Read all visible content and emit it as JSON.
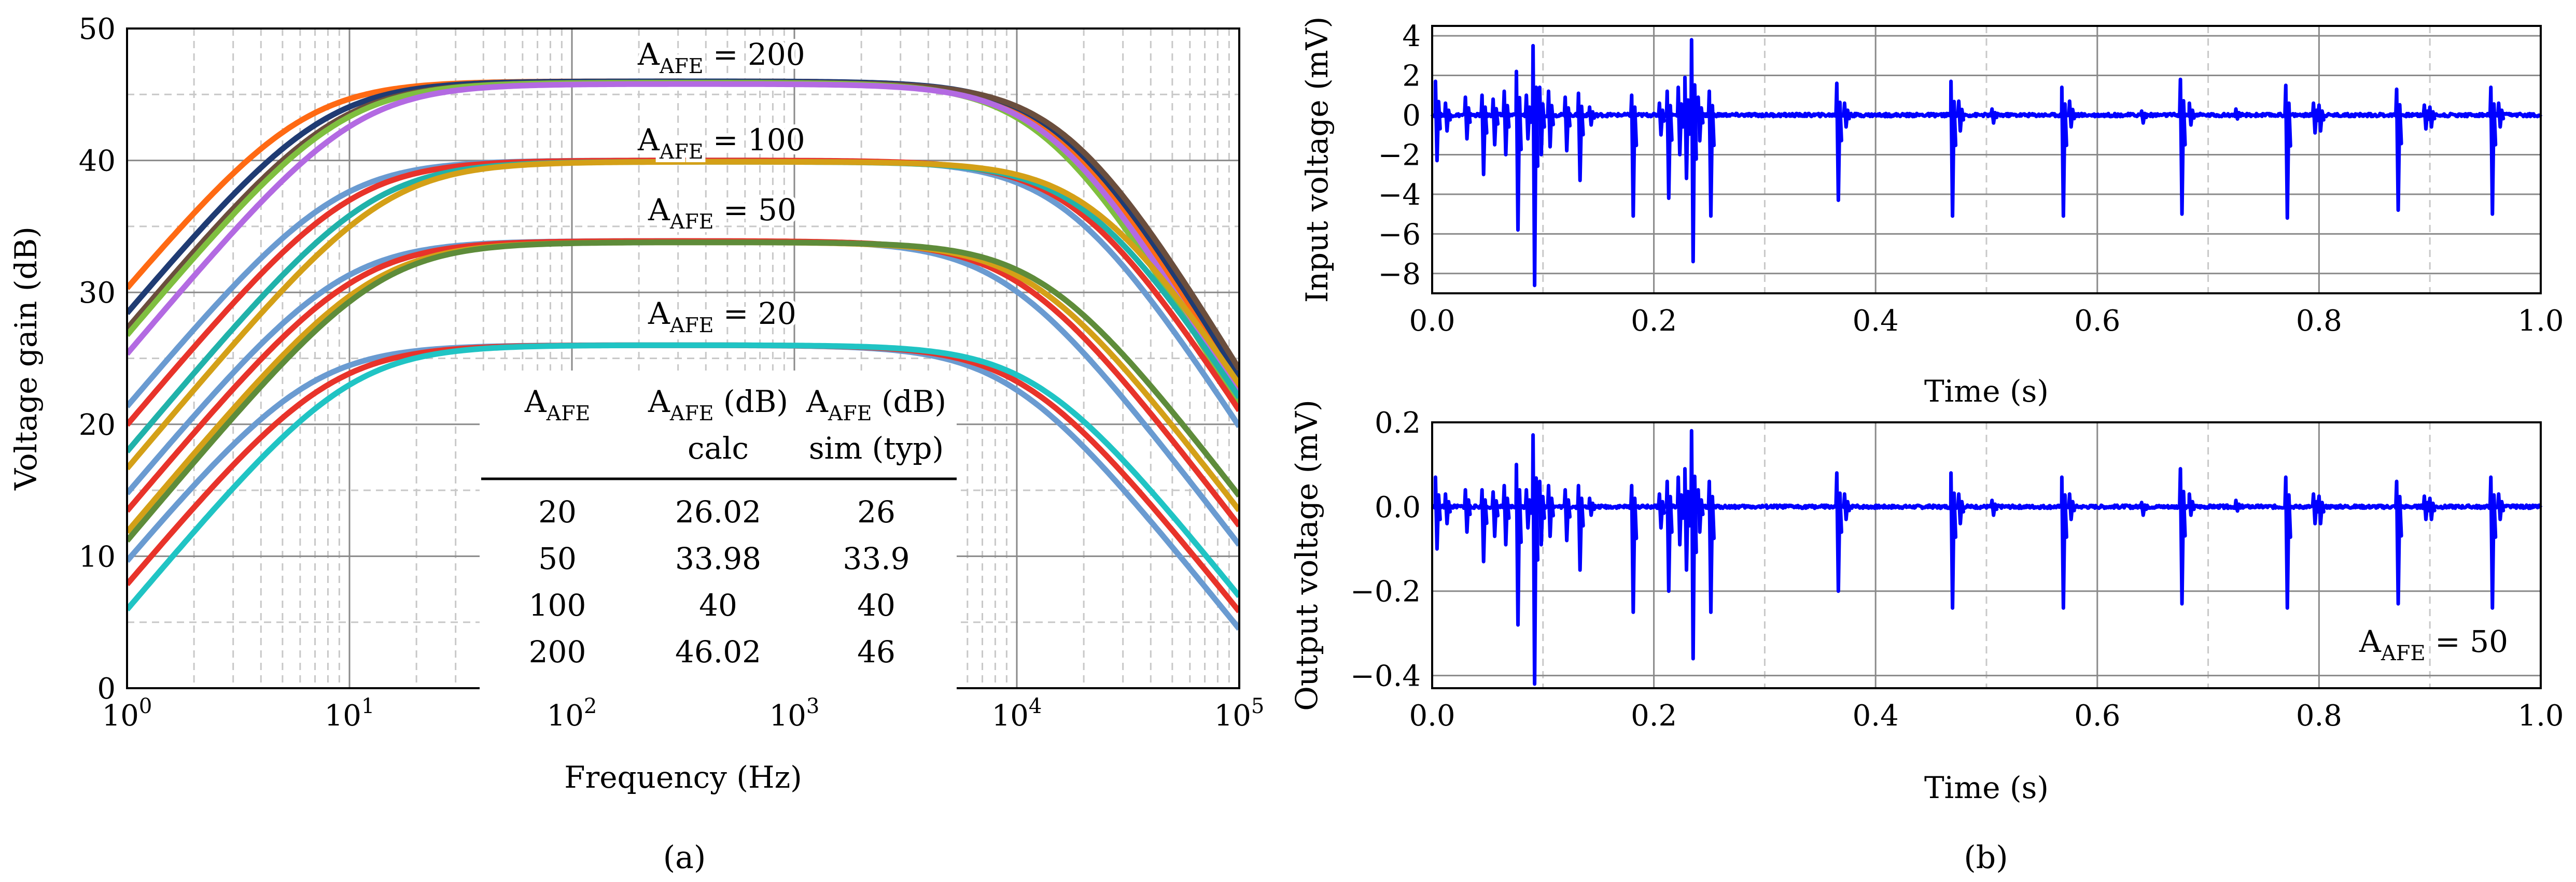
{
  "figure": {
    "captions": [
      "(a)",
      "(b)"
    ]
  },
  "chart_data": [
    {
      "id": "a",
      "type": "line",
      "xscale": "log",
      "xlabel": "Frequency (Hz)",
      "ylabel": "Voltage gain (dB)",
      "xlim": [
        1,
        100000
      ],
      "ylim": [
        0,
        50
      ],
      "yticks": [
        0,
        10,
        20,
        30,
        40,
        50
      ],
      "xticks": [
        {
          "base": "10",
          "exp": "0"
        },
        {
          "base": "10",
          "exp": "1"
        },
        {
          "base": "10",
          "exp": "2"
        },
        {
          "base": "10",
          "exp": "3"
        },
        {
          "base": "10",
          "exp": "4"
        },
        {
          "base": "10",
          "exp": "5"
        }
      ],
      "grid": true,
      "groups": [
        {
          "label_main": "A",
          "label_sub": "AFE",
          "label_rest": " = 200",
          "gain_db": 46,
          "curves": [
            {
              "color": "#FF6A13",
              "gain_db": 46.0,
              "fl": 6.0,
              "fh": 15000,
              "order": 1.4
            },
            {
              "color": "#1F3B73",
              "gain_db": 46.0,
              "fl": 7.5,
              "fh": 16000,
              "order": 1.4
            },
            {
              "color": "#6B4E3D",
              "gain_db": 45.9,
              "fl": 8.5,
              "fh": 17000,
              "order": 1.4
            },
            {
              "color": "#7FBF3F",
              "gain_db": 45.9,
              "fl": 9.0,
              "fh": 13500,
              "order": 1.4
            },
            {
              "color": "#B36AE2",
              "gain_db": 45.8,
              "fl": 10.5,
              "fh": 14500,
              "order": 1.4
            }
          ]
        },
        {
          "label_main": "A",
          "label_sub": "AFE",
          "label_rest": " = 100",
          "gain_db": 40,
          "curves": [
            {
              "color": "#6A9BD1",
              "gain_db": 40.0,
              "fl": 8.5,
              "fh": 17000,
              "order": 1.3
            },
            {
              "color": "#E8332A",
              "gain_db": 40.0,
              "fl": 10.0,
              "fh": 19000,
              "order": 1.3
            },
            {
              "color": "#20B2AA",
              "gain_db": 39.9,
              "fl": 12.5,
              "fh": 21000,
              "order": 1.3
            },
            {
              "color": "#D4A017",
              "gain_db": 39.9,
              "fl": 14.5,
              "fh": 23000,
              "order": 1.3
            }
          ]
        },
        {
          "label_main": "A",
          "label_sub": "AFE",
          "label_rest": " = 50",
          "gain_db": 34,
          "curves": [
            {
              "color": "#6A9BD1",
              "gain_db": 33.9,
              "fl": 9.0,
              "fh": 9000,
              "order": 1.1
            },
            {
              "color": "#E8332A",
              "gain_db": 33.9,
              "fl": 10.5,
              "fh": 10500,
              "order": 1.1
            },
            {
              "color": "#D4A017",
              "gain_db": 33.8,
              "fl": 12.5,
              "fh": 12000,
              "order": 1.1
            },
            {
              "color": "#5E8C3A",
              "gain_db": 33.8,
              "fl": 13.5,
              "fh": 13500,
              "order": 1.1
            }
          ]
        },
        {
          "label_main": "A",
          "label_sub": "AFE",
          "label_rest": " = 20",
          "gain_db": 26,
          "curves": [
            {
              "color": "#6A9BD1",
              "gain_db": 26.0,
              "fl": 6.5,
              "fh": 9500,
              "order": 1.05
            },
            {
              "color": "#E8332A",
              "gain_db": 26.0,
              "fl": 8.0,
              "fh": 11000,
              "order": 1.05
            },
            {
              "color": "#20C4C4",
              "gain_db": 26.0,
              "fl": 10.0,
              "fh": 12500,
              "order": 1.05
            }
          ]
        }
      ],
      "table": {
        "headers": [
          {
            "main": "A",
            "sub": "AFE",
            "rest": "",
            "line2": ""
          },
          {
            "main": "A",
            "sub": "AFE",
            "rest": " (dB)",
            "line2": "calc"
          },
          {
            "main": "A",
            "sub": "AFE",
            "rest": " (dB)",
            "line2": "sim (typ)"
          }
        ],
        "rows": [
          [
            "20",
            "26.02",
            "26"
          ],
          [
            "50",
            "33.98",
            "33.9"
          ],
          [
            "100",
            "40",
            "40"
          ],
          [
            "200",
            "46.02",
            "46"
          ]
        ]
      }
    },
    {
      "id": "b-top",
      "type": "line",
      "xlabel": "Time (s)",
      "ylabel": "Input voltage (mV)",
      "xlim": [
        0,
        1.0
      ],
      "ylim": [
        -9,
        4.5
      ],
      "xticks": [
        "0.0",
        "0.2",
        "0.4",
        "0.6",
        "0.8",
        "1.0"
      ],
      "yticks": [
        "4",
        "2",
        "0",
        "−2",
        "−4",
        "−6",
        "−8"
      ],
      "ytick_values": [
        4,
        2,
        0,
        -2,
        -4,
        -6,
        -8
      ],
      "grid": true,
      "series": [
        {
          "name": "input",
          "color": "#0000FF",
          "spikes": [
            {
              "t": 0.003,
              "up": 1.7,
              "down": -2.3
            },
            {
              "t": 0.012,
              "up": 0.6,
              "down": -0.8
            },
            {
              "t": 0.03,
              "up": 0.9,
              "down": -1.2
            },
            {
              "t": 0.045,
              "up": 1.0,
              "down": -3.0
            },
            {
              "t": 0.055,
              "up": 0.8,
              "down": -1.5
            },
            {
              "t": 0.065,
              "up": 1.2,
              "down": -2.0
            },
            {
              "t": 0.076,
              "up": 2.2,
              "down": -5.8
            },
            {
              "t": 0.085,
              "up": 1.0,
              "down": -1.2
            },
            {
              "t": 0.091,
              "up": 3.5,
              "down": -8.6
            },
            {
              "t": 0.097,
              "up": 1.4,
              "down": -2.0
            },
            {
              "t": 0.105,
              "up": 1.2,
              "down": -1.6
            },
            {
              "t": 0.12,
              "up": 0.9,
              "down": -1.8
            },
            {
              "t": 0.132,
              "up": 1.1,
              "down": -3.3
            },
            {
              "t": 0.142,
              "up": 0.4,
              "down": -0.5
            },
            {
              "t": 0.18,
              "up": 1.0,
              "down": -5.1
            },
            {
              "t": 0.205,
              "up": 0.6,
              "down": -1.0
            },
            {
              "t": 0.212,
              "up": 1.2,
              "down": -4.2
            },
            {
              "t": 0.222,
              "up": 1.4,
              "down": -2.0
            },
            {
              "t": 0.228,
              "up": 1.9,
              "down": -3.2
            },
            {
              "t": 0.234,
              "up": 3.8,
              "down": -7.4
            },
            {
              "t": 0.24,
              "up": 0.9,
              "down": -1.3
            },
            {
              "t": 0.25,
              "up": 1.2,
              "down": -5.1
            },
            {
              "t": 0.365,
              "up": 1.6,
              "down": -4.3
            },
            {
              "t": 0.372,
              "up": 0.6,
              "down": -0.6
            },
            {
              "t": 0.468,
              "up": 1.7,
              "down": -5.1
            },
            {
              "t": 0.475,
              "up": 0.7,
              "down": -0.8
            },
            {
              "t": 0.505,
              "up": 0.3,
              "down": -0.4
            },
            {
              "t": 0.568,
              "up": 1.4,
              "down": -5.1
            },
            {
              "t": 0.575,
              "up": 0.7,
              "down": -0.6
            },
            {
              "t": 0.64,
              "up": 0.2,
              "down": -0.4
            },
            {
              "t": 0.675,
              "up": 1.8,
              "down": -5.0
            },
            {
              "t": 0.683,
              "up": 0.6,
              "down": -0.5
            },
            {
              "t": 0.725,
              "up": 0.3,
              "down": -0.2
            },
            {
              "t": 0.77,
              "up": 1.5,
              "down": -5.2
            },
            {
              "t": 0.795,
              "up": 0.6,
              "down": -0.9
            },
            {
              "t": 0.8,
              "up": 0.5,
              "down": -0.8
            },
            {
              "t": 0.87,
              "up": 1.3,
              "down": -4.8
            },
            {
              "t": 0.895,
              "up": 0.5,
              "down": -0.7
            },
            {
              "t": 0.9,
              "up": 0.4,
              "down": -0.6
            },
            {
              "t": 0.955,
              "up": 1.4,
              "down": -5.0
            },
            {
              "t": 0.962,
              "up": 0.6,
              "down": -0.6
            }
          ]
        }
      ]
    },
    {
      "id": "b-bottom",
      "type": "line",
      "xlabel": "Time (s)",
      "ylabel": "Output voltage (mV)",
      "xlim": [
        0,
        1.0
      ],
      "ylim": [
        -0.43,
        0.2
      ],
      "xticks": [
        "0.0",
        "0.2",
        "0.4",
        "0.6",
        "0.8",
        "1.0"
      ],
      "yticks": [
        "0.2",
        "0.0",
        "−0.2",
        "−0.4"
      ],
      "ytick_values": [
        0.2,
        0.0,
        -0.2,
        -0.4
      ],
      "grid": true,
      "annotation": {
        "main": "A",
        "sub": "AFE",
        "rest": " = 50"
      },
      "series": [
        {
          "name": "output",
          "color": "#0000FF",
          "spikes": [
            {
              "t": 0.003,
              "up": 0.07,
              "down": -0.1
            },
            {
              "t": 0.012,
              "up": 0.03,
              "down": -0.04
            },
            {
              "t": 0.03,
              "up": 0.04,
              "down": -0.06
            },
            {
              "t": 0.045,
              "up": 0.04,
              "down": -0.13
            },
            {
              "t": 0.055,
              "up": 0.035,
              "down": -0.07
            },
            {
              "t": 0.065,
              "up": 0.05,
              "down": -0.09
            },
            {
              "t": 0.076,
              "up": 0.1,
              "down": -0.28
            },
            {
              "t": 0.085,
              "up": 0.04,
              "down": -0.05
            },
            {
              "t": 0.091,
              "up": 0.17,
              "down": -0.42
            },
            {
              "t": 0.097,
              "up": 0.06,
              "down": -0.09
            },
            {
              "t": 0.105,
              "up": 0.05,
              "down": -0.07
            },
            {
              "t": 0.12,
              "up": 0.04,
              "down": -0.08
            },
            {
              "t": 0.132,
              "up": 0.05,
              "down": -0.15
            },
            {
              "t": 0.142,
              "up": 0.02,
              "down": -0.02
            },
            {
              "t": 0.18,
              "up": 0.05,
              "down": -0.25
            },
            {
              "t": 0.205,
              "up": 0.03,
              "down": -0.05
            },
            {
              "t": 0.212,
              "up": 0.06,
              "down": -0.2
            },
            {
              "t": 0.222,
              "up": 0.07,
              "down": -0.09
            },
            {
              "t": 0.228,
              "up": 0.09,
              "down": -0.15
            },
            {
              "t": 0.234,
              "up": 0.18,
              "down": -0.36
            },
            {
              "t": 0.24,
              "up": 0.04,
              "down": -0.06
            },
            {
              "t": 0.25,
              "up": 0.06,
              "down": -0.25
            },
            {
              "t": 0.365,
              "up": 0.08,
              "down": -0.2
            },
            {
              "t": 0.372,
              "up": 0.03,
              "down": -0.03
            },
            {
              "t": 0.468,
              "up": 0.08,
              "down": -0.24
            },
            {
              "t": 0.475,
              "up": 0.03,
              "down": -0.04
            },
            {
              "t": 0.505,
              "up": 0.015,
              "down": -0.02
            },
            {
              "t": 0.568,
              "up": 0.07,
              "down": -0.24
            },
            {
              "t": 0.575,
              "up": 0.03,
              "down": -0.03
            },
            {
              "t": 0.64,
              "up": 0.01,
              "down": -0.02
            },
            {
              "t": 0.675,
              "up": 0.09,
              "down": -0.23
            },
            {
              "t": 0.683,
              "up": 0.03,
              "down": -0.02
            },
            {
              "t": 0.725,
              "up": 0.015,
              "down": -0.01
            },
            {
              "t": 0.77,
              "up": 0.07,
              "down": -0.24
            },
            {
              "t": 0.795,
              "up": 0.03,
              "down": -0.04
            },
            {
              "t": 0.8,
              "up": 0.025,
              "down": -0.04
            },
            {
              "t": 0.87,
              "up": 0.06,
              "down": -0.23
            },
            {
              "t": 0.895,
              "up": 0.025,
              "down": -0.03
            },
            {
              "t": 0.9,
              "up": 0.02,
              "down": -0.03
            },
            {
              "t": 0.955,
              "up": 0.07,
              "down": -0.24
            },
            {
              "t": 0.962,
              "up": 0.03,
              "down": -0.03
            }
          ]
        }
      ]
    }
  ]
}
